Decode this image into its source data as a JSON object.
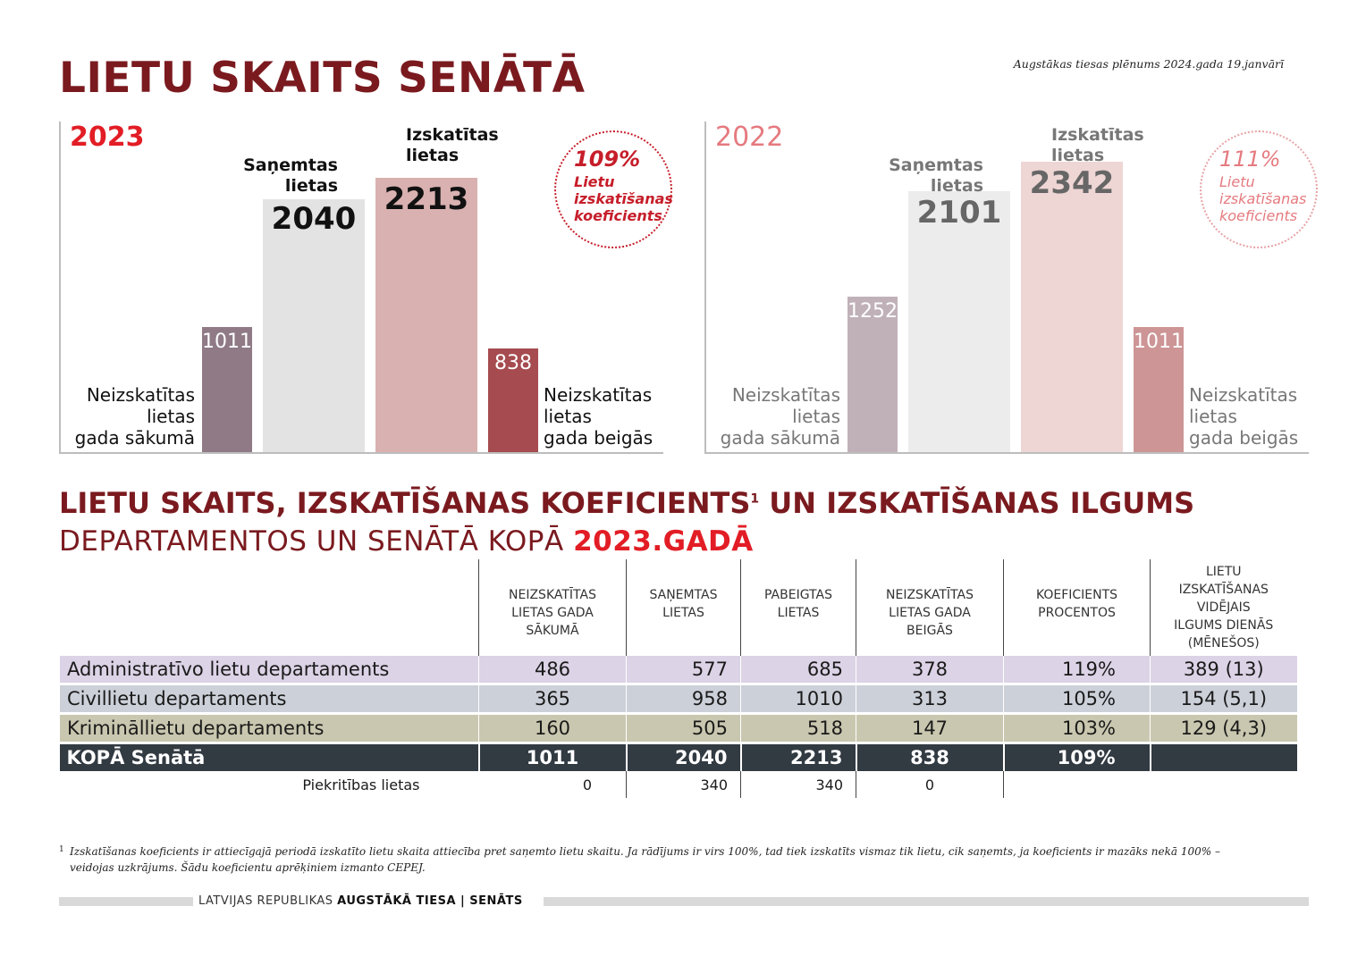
{
  "header": {
    "title": "LIETU SKAITS SENĀTĀ",
    "source_note": "Augstākas tiesas plēnums 2024.gada 19.janvārī"
  },
  "colors": {
    "dark_red": "#7a1a1f",
    "accent_red": "#e21d25",
    "total_row": "#323a42",
    "row_admin": "#dcd3e6",
    "row_civil": "#ccd0d9",
    "row_criminal": "#c9c7af"
  },
  "chart_data": [
    {
      "type": "bar",
      "title": "2023",
      "categories": [
        "Neizskatītas lietas gada sākumā",
        "Saņemtas lietas",
        "Izskatītas lietas",
        "Neizskatītas lietas gada beigās"
      ],
      "values": [
        1011,
        2040,
        2213,
        838
      ],
      "ylim": [
        0,
        2400
      ],
      "bar_colors": [
        "#8f7a86",
        "#e3e3e3",
        "#d9b1b0",
        "#a64b4f"
      ],
      "labels": {
        "start": [
          "Neizskatītas",
          "lietas",
          "gada sākumā"
        ],
        "received": [
          "Saņemtas",
          "lietas"
        ],
        "reviewed": [
          "Izskatītas",
          "lietas"
        ],
        "end": [
          "Neizskatītas",
          "lietas",
          "gada beigās"
        ]
      },
      "value_labels": [
        "1011",
        "2040",
        "2213",
        "838"
      ],
      "coefficient": {
        "pct": "109%",
        "text": [
          "Lietu",
          "izskatīšanas",
          "koeficients"
        ]
      }
    },
    {
      "type": "bar",
      "title": "2022",
      "categories": [
        "Neizskatītas lietas gada sākumā",
        "Saņemtas lietas",
        "Izskatītas lietas",
        "Neizskatītas lietas gada beigās"
      ],
      "values": [
        1252,
        2101,
        2342,
        1011
      ],
      "ylim": [
        0,
        2400
      ],
      "bar_colors": [
        "#c0b1b8",
        "#ececec",
        "#eed6d5",
        "#cd9595"
      ],
      "labels": {
        "start": [
          "Neizskatītas",
          "lietas",
          "gada sākumā"
        ],
        "received": [
          "Saņemtas",
          "lietas"
        ],
        "reviewed": [
          "Izskatītas",
          "lietas"
        ],
        "end": [
          "Neizskatītas",
          "lietas",
          "gada beigās"
        ]
      },
      "value_labels": [
        "1252",
        "2101",
        "2342",
        "1011"
      ],
      "coefficient": {
        "pct": "111%",
        "text": [
          "Lietu",
          "izskatīšanas",
          "koeficients"
        ]
      }
    },
    {
      "type": "table",
      "title_line1": "LIETU SKAITS, IZSKATĪŠANAS KOEFICIENTS",
      "title_sup": "1",
      "title_line1_end": " UN IZSKATĪŠANAS ILGUMS",
      "title_line2": "DEPARTAMENTOS UN SENĀTĀ KOPĀ ",
      "title_line2_hl": "2023.GADĀ",
      "headers": [
        [
          "NEIZSKATĪTAS",
          "LIETAS GADA",
          "SĀKUMĀ"
        ],
        [
          "SAŅEMTAS",
          "LIETAS"
        ],
        [
          "PABEIGTAS",
          "LIETAS"
        ],
        [
          "NEIZSKATĪTAS",
          "LIETAS GADA",
          "BEIGĀS"
        ],
        [
          "KOEFICIENTS",
          "PROCENTOS"
        ],
        [
          "LIETU",
          "IZSKATĪŠANAS",
          "VIDĒJAIS",
          "ILGUMS DIENĀS",
          "(MĒNEŠOS)"
        ]
      ],
      "rows": [
        {
          "name": "Administratīvo lietu departaments",
          "values": [
            "486",
            "577",
            "685",
            "378",
            "119%",
            "389 (13)"
          ]
        },
        {
          "name": "Civillietu departaments",
          "values": [
            "365",
            "958",
            "1010",
            "313",
            "105%",
            "154 (5,1)"
          ]
        },
        {
          "name": "Krimināllietu departaments",
          "values": [
            "160",
            "505",
            "518",
            "147",
            "103%",
            "129 (4,3)"
          ]
        }
      ],
      "total": {
        "name": "KOPĀ Senātā",
        "values": [
          "1011",
          "2040",
          "2213",
          "838",
          "109%",
          ""
        ]
      },
      "sub": {
        "name": "Piekritības lietas",
        "values": [
          "0",
          "340",
          "340",
          "0",
          "",
          ""
        ]
      }
    }
  ],
  "footnote": {
    "num": "1",
    "text": "Izskatīšanas koeficients ir attiecīgajā periodā izskatīto lietu skaita attiecība pret saņemto lietu skaitu. Ja rādījums ir virs 100%, tad tiek izskatīts vismaz tik lietu, cik saņemts, ja koeficients ir mazāks nekā 100% – veidojas uzkrājums. Šādu koeficientu aprēķiniem izmanto CEPEJ."
  },
  "footer": {
    "org": "LATVIJAS REPUBLIKAS ",
    "org_bold": "AUGSTĀKĀ TIESA | SENĀTS"
  }
}
